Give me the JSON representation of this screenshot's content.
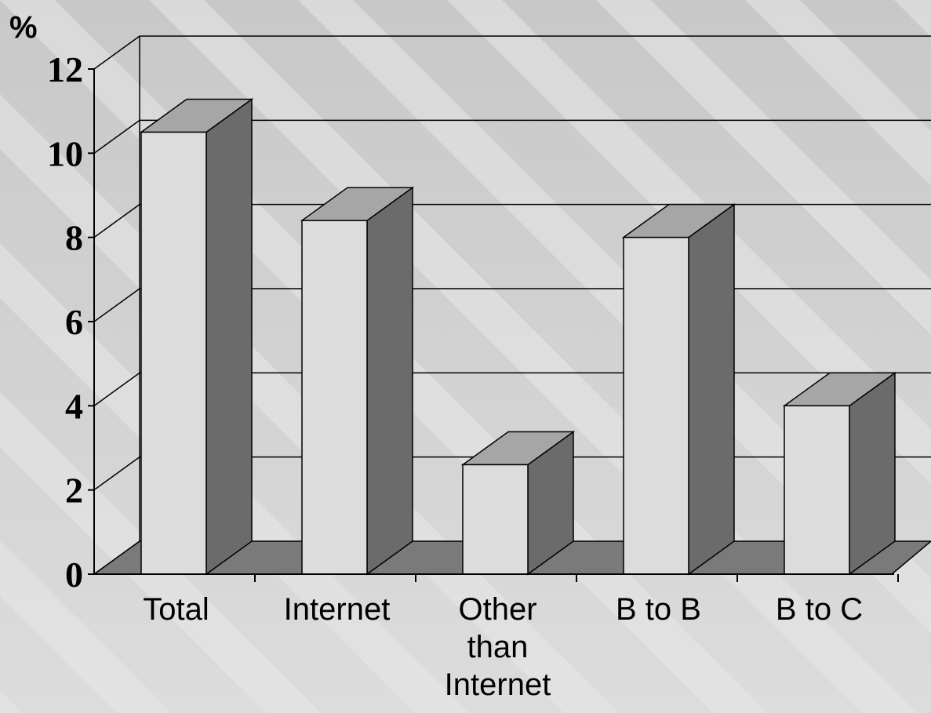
{
  "chart_data": {
    "type": "bar",
    "title": "",
    "xlabel": "",
    "ylabel": "%",
    "ylim": [
      0,
      12
    ],
    "yticks": [
      0,
      2,
      4,
      6,
      8,
      10,
      12
    ],
    "categories": [
      "Total",
      "Internet",
      "Other than Internet",
      "B to B",
      "B to C"
    ],
    "category_lines": [
      [
        "Total"
      ],
      [
        "Internet"
      ],
      [
        "Other",
        "than",
        "Internet"
      ],
      [
        "B to B"
      ],
      [
        "B to C"
      ]
    ],
    "values": [
      10.5,
      8.4,
      2.6,
      8.0,
      4.0
    ],
    "grid": true,
    "legend": "none",
    "three_d": true
  },
  "colors": {
    "background": "#d6d6d6",
    "stripe": "#e8e8e8",
    "bar_front": "#dcdcdc",
    "bar_top": "#a6a6a6",
    "bar_side": "#6b6b6b",
    "floor": "#7a7a7a",
    "grid": "#000000"
  }
}
